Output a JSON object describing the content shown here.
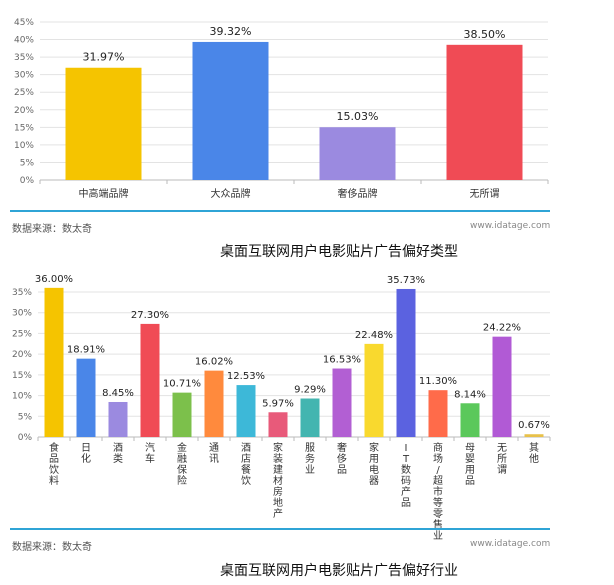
{
  "chart_data": [
    {
      "type": "bar",
      "categories": [
        "中高端品牌",
        "大众品牌",
        "奢侈品牌",
        "无所谓"
      ],
      "values": [
        31.97,
        39.32,
        15.03,
        38.5
      ],
      "value_labels": [
        "31.97%",
        "39.32%",
        "15.03%",
        "38.50%"
      ],
      "colors": [
        "#f5c400",
        "#4a86e8",
        "#9b8ae0",
        "#f04b55"
      ],
      "yticks": [
        "0%",
        "5%",
        "10%",
        "15%",
        "20%",
        "25%",
        "30%",
        "35%",
        "40%",
        "45%"
      ],
      "ylim": [
        0,
        45
      ],
      "grid": true,
      "source": "数据来源：数太奇",
      "site": "www.idatage.com",
      "caption": "桌面互联网用户电影贴片广告偏好类型"
    },
    {
      "type": "bar",
      "categories": [
        "食品饮料",
        "日化",
        "酒类",
        "汽车",
        "金融保险",
        "通讯",
        "酒店餐饮",
        "家装建材房地产",
        "服务业",
        "奢侈品",
        "家用电器",
        "IT数码产品",
        "商场/超市等零售业",
        "母婴用品",
        "无所谓",
        "其他"
      ],
      "values": [
        36.0,
        18.91,
        8.45,
        27.3,
        10.71,
        16.02,
        12.53,
        5.97,
        9.29,
        16.53,
        22.48,
        35.73,
        11.3,
        8.14,
        24.22,
        0.67
      ],
      "value_labels": [
        "36.00%",
        "18.91%",
        "8.45%",
        "27.30%",
        "10.71%",
        "16.02%",
        "12.53%",
        "5.97%",
        "9.29%",
        "16.53%",
        "22.48%",
        "35.73%",
        "11.30%",
        "8.14%",
        "24.22%",
        "0.67%"
      ],
      "colors": [
        "#f5c400",
        "#4a86e8",
        "#9b8ae0",
        "#f04b55",
        "#7cc04b",
        "#ff8a3d",
        "#3db8d8",
        "#e85a7a",
        "#43b5b0",
        "#b25fd3",
        "#f9d92e",
        "#5b62e0",
        "#ff6b4a",
        "#5bc85b",
        "#b15ad5",
        "#e8c14a"
      ],
      "yticks": [
        "0%",
        "5%",
        "10%",
        "15%",
        "20%",
        "25%",
        "30%",
        "35%"
      ],
      "ylim": [
        0,
        35
      ],
      "grid": true,
      "source": "数据来源：数太奇",
      "site": "www.idatage.com",
      "caption": "桌面互联网用户电影贴片广告偏好行业"
    }
  ]
}
